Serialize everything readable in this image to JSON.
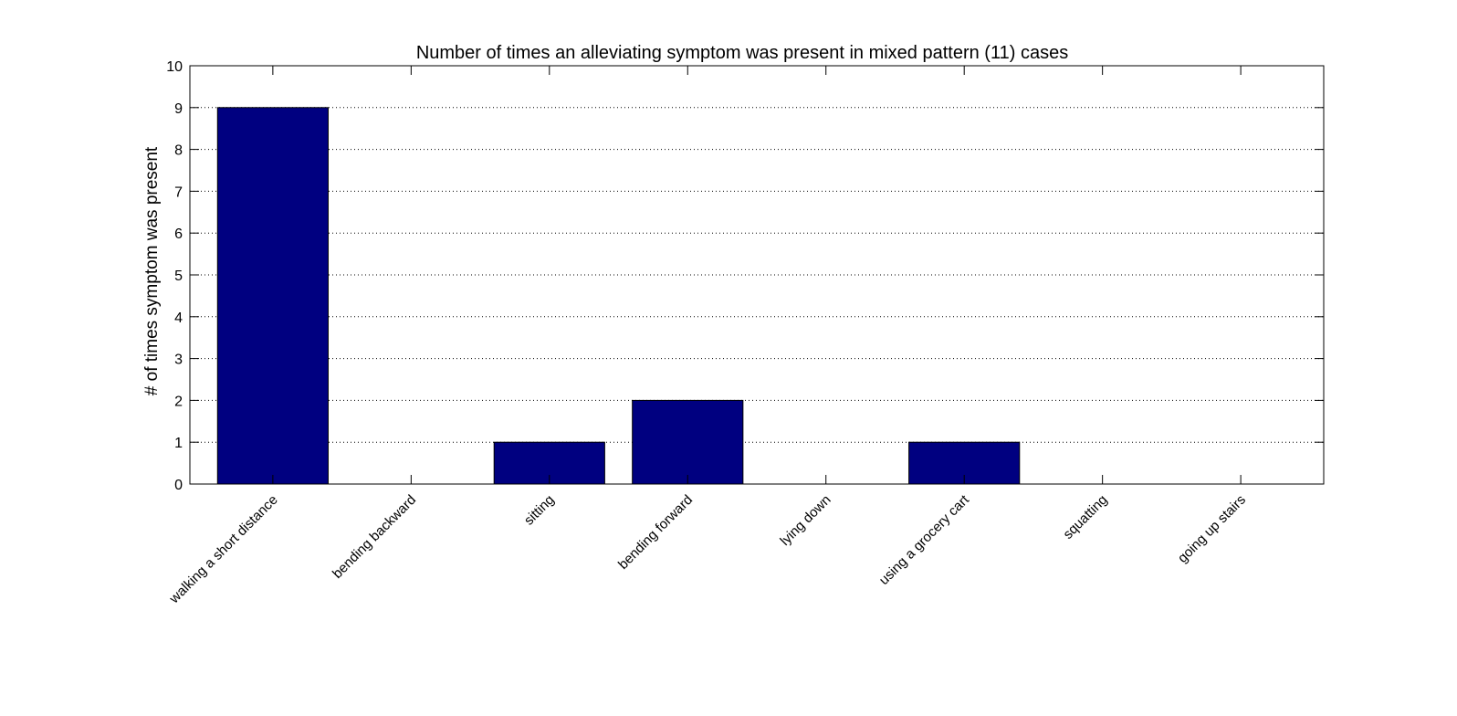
{
  "chart_data": {
    "type": "bar",
    "title": "Number of times an alleviating symptom was present in mixed pattern (11) cases",
    "xlabel": "",
    "ylabel": "# of times symptom was present",
    "categories": [
      "walking a short distance",
      "bending backward",
      "sitting",
      "bending forward",
      "lying down",
      "using a grocery cart",
      "squatting",
      "going up stairs"
    ],
    "values": [
      9,
      0,
      1,
      2,
      0,
      1,
      0,
      0
    ],
    "ylim": [
      0,
      10
    ],
    "yticks": [
      "0",
      "1",
      "2",
      "3",
      "4",
      "5",
      "6",
      "7",
      "8",
      "9",
      "10"
    ],
    "grid": "horizontal dotted",
    "legend": "none",
    "bar_color": "#000080"
  }
}
